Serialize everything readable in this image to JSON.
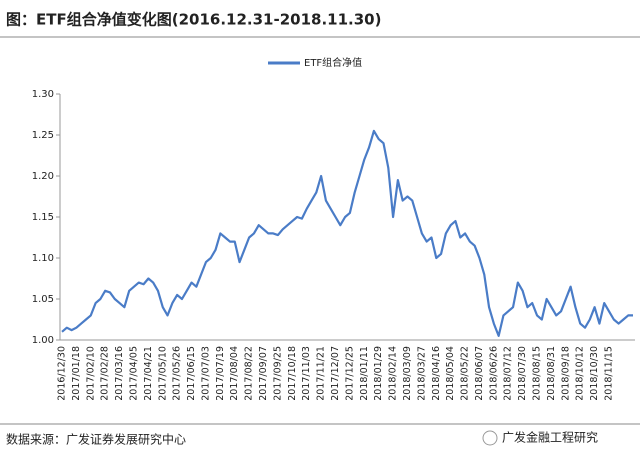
{
  "chart_data": {
    "type": "line",
    "title": "图：ETF组合净值变化图(2016.12.31-2018.11.30)",
    "source": "数据来源：广发证券发展研究中心",
    "watermark": "广发金融工程研究",
    "categories": [
      "2016/12/30",
      null,
      null,
      "2017/01/18",
      null,
      null,
      "2017/02/10",
      null,
      null,
      "2017/02/28",
      null,
      null,
      "2017/03/16",
      null,
      null,
      "2017/04/05",
      null,
      null,
      "2017/04/21",
      null,
      null,
      "2017/05/10",
      null,
      null,
      "2017/05/26",
      null,
      null,
      "2017/06/15",
      null,
      null,
      "2017/07/03",
      null,
      null,
      "2017/07/19",
      null,
      null,
      "2017/08/04",
      null,
      null,
      "2017/08/22",
      null,
      null,
      "2017/09/07",
      null,
      null,
      "2017/09/25",
      null,
      null,
      "2017/10/18",
      null,
      null,
      "2017/11/03",
      null,
      null,
      "2017/11/21",
      null,
      null,
      "2017/12/07",
      null,
      null,
      "2017/12/25",
      null,
      null,
      "2018/01/11",
      null,
      null,
      "2018/01/29",
      null,
      null,
      "2018/02/14",
      null,
      null,
      "2018/03/09",
      null,
      null,
      "2018/03/27",
      null,
      null,
      "2018/04/16",
      null,
      null,
      "2018/05/04",
      null,
      null,
      "2018/05/22",
      null,
      null,
      "2018/06/07",
      null,
      null,
      "2018/06/26",
      null,
      null,
      "2018/07/12",
      null,
      null,
      "2018/07/30",
      null,
      null,
      "2018/08/15",
      null,
      null,
      "2018/08/31",
      null,
      null,
      "2018/09/18",
      null,
      null,
      "2018/10/12",
      null,
      null,
      "2018/10/30",
      null,
      null,
      "2018/11/15",
      null,
      null,
      null,
      null,
      null
    ],
    "series": [
      {
        "name": "ETF组合净值",
        "color": "#4a7cc7",
        "values": [
          1.01,
          1.015,
          1.012,
          1.015,
          1.02,
          1.025,
          1.03,
          1.045,
          1.05,
          1.06,
          1.058,
          1.05,
          1.045,
          1.04,
          1.06,
          1.065,
          1.07,
          1.068,
          1.075,
          1.07,
          1.06,
          1.04,
          1.03,
          1.045,
          1.055,
          1.05,
          1.06,
          1.07,
          1.065,
          1.08,
          1.095,
          1.1,
          1.11,
          1.13,
          1.125,
          1.12,
          1.12,
          1.095,
          1.11,
          1.125,
          1.13,
          1.14,
          1.135,
          1.13,
          1.13,
          1.128,
          1.135,
          1.14,
          1.145,
          1.15,
          1.148,
          1.16,
          1.17,
          1.18,
          1.2,
          1.17,
          1.16,
          1.15,
          1.14,
          1.15,
          1.155,
          1.18,
          1.2,
          1.22,
          1.235,
          1.255,
          1.245,
          1.24,
          1.21,
          1.15,
          1.195,
          1.17,
          1.175,
          1.17,
          1.15,
          1.13,
          1.12,
          1.125,
          1.1,
          1.105,
          1.13,
          1.14,
          1.145,
          1.125,
          1.13,
          1.12,
          1.115,
          1.1,
          1.08,
          1.04,
          1.02,
          1.005,
          1.03,
          1.035,
          1.04,
          1.07,
          1.06,
          1.04,
          1.045,
          1.03,
          1.025,
          1.05,
          1.04,
          1.03,
          1.035,
          1.05,
          1.065,
          1.04,
          1.02,
          1.015,
          1.025,
          1.04,
          1.02,
          1.045,
          1.035,
          1.025,
          1.02,
          1.025,
          1.03,
          1.03
        ]
      }
    ],
    "ylim": [
      1.0,
      1.3
    ],
    "yticks": [
      {
        "value": 1.0,
        "label": "1.00"
      },
      1.05,
      {
        "value": 1.1,
        "label": "1.10"
      },
      1.15,
      {
        "value": 1.2,
        "label": "1.20"
      },
      1.25,
      {
        "value": 1.3,
        "label": "1.30"
      }
    ],
    "grid": false,
    "legend": "top"
  }
}
